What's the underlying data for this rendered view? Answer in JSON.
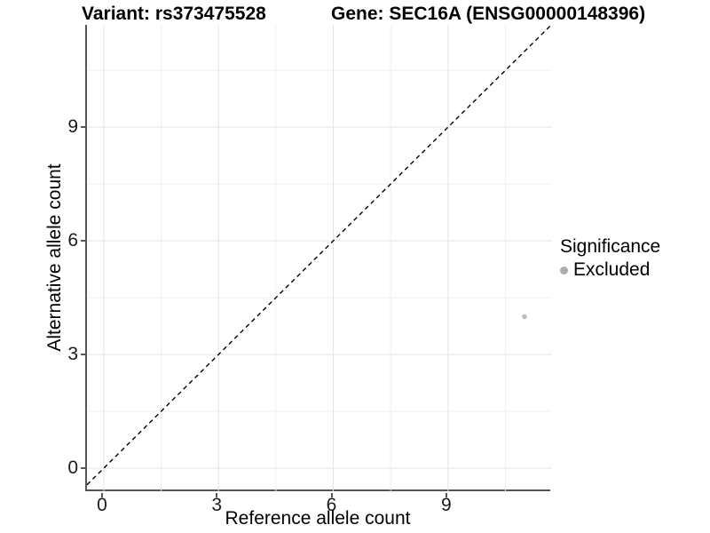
{
  "chart_data": {
    "type": "scatter",
    "title_left": "Variant: rs373475528",
    "title_right": "Gene: SEC16A (ENSG00000148396)",
    "xlabel": "Reference allele count",
    "ylabel": "Alternative allele count",
    "xlim": [
      -0.44,
      11.72
    ],
    "ylim": [
      -0.61,
      11.7
    ],
    "x_ticks": [
      0,
      3,
      6,
      9
    ],
    "x_tick_labels": [
      "0",
      "3",
      "6",
      "9"
    ],
    "y_ticks": [
      0,
      3,
      6,
      9
    ],
    "y_tick_labels": [
      "0",
      "3",
      "6",
      "9"
    ],
    "x_minor": [
      1.5,
      4.5,
      7.5,
      10.5
    ],
    "y_minor": [
      1.5,
      4.5,
      7.5,
      10.5
    ],
    "grid": true,
    "reference_line": {
      "type": "identity",
      "slope": 1,
      "intercept": 0,
      "style": "dashed",
      "color": "#000000"
    },
    "series": [
      {
        "name": "Excluded",
        "color": "#bdbdbd",
        "point_radius": 2.8,
        "points": [
          [
            11,
            4
          ]
        ]
      }
    ],
    "legend": {
      "title": "Significance",
      "position": "right",
      "items": [
        {
          "label": "Excluded",
          "color": "#aeaeae"
        }
      ]
    },
    "colors": {
      "background": "#ffffff",
      "grid_major": "#e4e4e4",
      "grid_minor": "#efefef",
      "axis_line": "#565656",
      "text": "#000000"
    }
  }
}
